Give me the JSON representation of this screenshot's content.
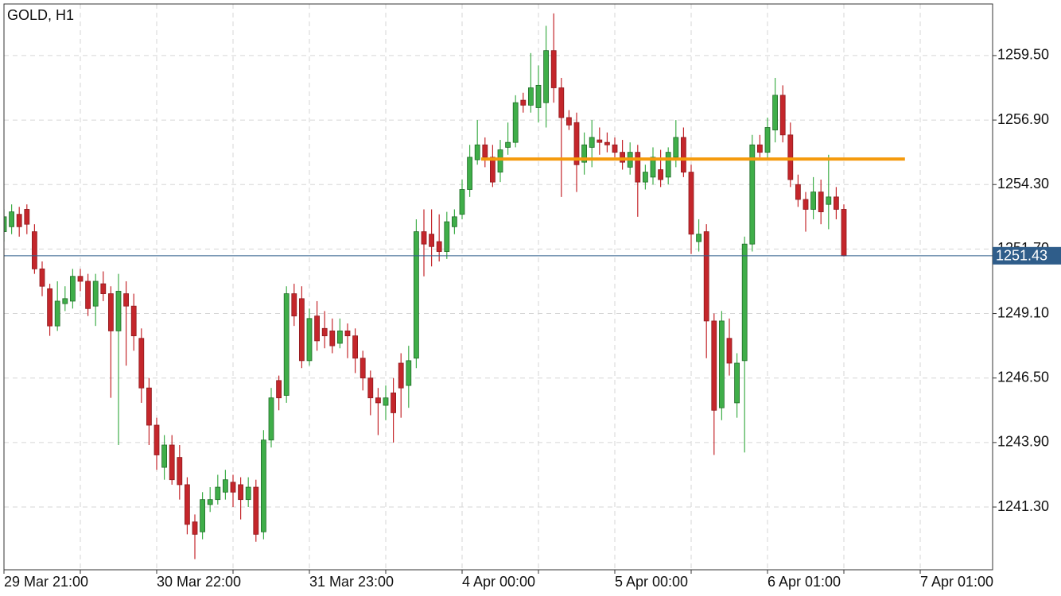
{
  "chart_data": {
    "type": "candlestick",
    "title": "GOLD, H1",
    "open": [
      1252.4,
      1252.6,
      1253.1,
      1253.3,
      1252.4,
      1250.9,
      1250.1,
      1248.6,
      1249.5,
      1249.6,
      1250.6,
      1250.4,
      1249.4,
      1250.3,
      1249.9,
      1248.4,
      1249.9,
      1249.4,
      1248.1,
      1246.1,
      1244.6,
      1242.9,
      1243.8,
      1243.3,
      1242.2,
      1240.7,
      1240.3,
      1241.4,
      1241.6,
      1241.9,
      1242.3,
      1242.2,
      1241.6,
      1242.1,
      1240.3,
      1244.0,
      1246.4,
      1245.8,
      1249.9,
      1249.7,
      1247.2,
      1249.0,
      1248.5,
      1248.4,
      1247.9,
      1248.4,
      1248.2,
      1247.3,
      1246.5,
      1245.7,
      1245.4,
      1245.9,
      1247.1,
      1246.2,
      1247.3,
      1252.4,
      1252.3,
      1252.0,
      1251.6,
      1252.6,
      1253.1,
      1254.1,
      1255.3,
      1255.9,
      1255.4,
      1254.8,
      1255.8,
      1256.0,
      1257.7,
      1257.5,
      1257.4,
      1257.6,
      1259.7,
      1258.2,
      1257.0,
      1256.8,
      1255.2,
      1255.8,
      1256.1,
      1256.0,
      1255.9,
      1255.6,
      1255.0,
      1255.6,
      1254.4,
      1254.6,
      1254.9,
      1254.6,
      1255.4,
      1256.2,
      1254.8,
      1252.0,
      1252.4,
      1248.8,
      1245.3,
      1248.1,
      1245.5,
      1247.2,
      1251.9,
      1255.9,
      1255.6,
      1256.5,
      1257.9,
      1256.3,
      1254.3,
      1253.7,
      1253.3,
      1254.0,
      1253.5,
      1253.8,
      1253.3
    ],
    "high": [
      1253.3,
      1253.5,
      1253.4,
      1253.5,
      1252.7,
      1251.2,
      1250.3,
      1250.4,
      1250.2,
      1250.9,
      1250.9,
      1250.7,
      1250.7,
      1250.8,
      1250.2,
      1250.7,
      1250.4,
      1249.9,
      1248.5,
      1246.5,
      1244.9,
      1244.2,
      1244.2,
      1243.8,
      1242.5,
      1241.0,
      1241.9,
      1242.1,
      1242.6,
      1242.8,
      1242.6,
      1242.5,
      1242.5,
      1242.4,
      1244.4,
      1246.1,
      1246.6,
      1250.2,
      1250.3,
      1250.2,
      1249.3,
      1249.6,
      1249.2,
      1248.9,
      1248.9,
      1248.7,
      1248.5,
      1247.6,
      1246.8,
      1246.1,
      1246.2,
      1246.5,
      1247.5,
      1247.8,
      1252.9,
      1253.3,
      1253.3,
      1253.1,
      1253.2,
      1253.3,
      1254.5,
      1255.9,
      1256.9,
      1256.2,
      1255.9,
      1256.1,
      1256.8,
      1257.9,
      1258.0,
      1259.6,
      1259.1,
      1260.7,
      1261.2,
      1258.6,
      1257.3,
      1257.2,
      1256.4,
      1256.9,
      1256.6,
      1256.4,
      1256.2,
      1256.1,
      1256.0,
      1255.9,
      1255.1,
      1255.8,
      1255.7,
      1255.8,
      1256.9,
      1256.6,
      1255.1,
      1252.9,
      1252.7,
      1249.1,
      1249.2,
      1248.9,
      1247.5,
      1252.2,
      1256.3,
      1256.3,
      1257.0,
      1258.6,
      1258.3,
      1256.8,
      1254.7,
      1254.0,
      1254.6,
      1254.5,
      1255.5,
      1254.2,
      1253.5
    ],
    "low": [
      1252.0,
      1252.3,
      1252.2,
      1252.3,
      1250.7,
      1249.8,
      1248.2,
      1248.4,
      1249.2,
      1249.3,
      1250.0,
      1249.0,
      1248.6,
      1249.6,
      1245.7,
      1243.8,
      1247.0,
      1247.6,
      1245.5,
      1243.8,
      1242.8,
      1242.4,
      1242.2,
      1241.6,
      1240.2,
      1239.2,
      1240.0,
      1241.1,
      1241.4,
      1241.6,
      1241.3,
      1240.8,
      1241.3,
      1239.9,
      1240.0,
      1243.7,
      1245.2,
      1245.5,
      1248.6,
      1246.9,
      1247.0,
      1247.6,
      1247.7,
      1247.5,
      1247.7,
      1247.3,
      1246.7,
      1246.0,
      1245.0,
      1244.2,
      1244.8,
      1243.9,
      1244.9,
      1245.3,
      1246.9,
      1250.6,
      1251.0,
      1251.2,
      1251.3,
      1252.3,
      1252.9,
      1253.8,
      1255.1,
      1255.0,
      1254.2,
      1254.4,
      1255.5,
      1255.8,
      1257.2,
      1257.2,
      1256.8,
      1256.6,
      1257.6,
      1253.8,
      1256.5,
      1254.0,
      1254.7,
      1255.0,
      1255.5,
      1255.6,
      1255.4,
      1254.9,
      1254.7,
      1253.0,
      1254.1,
      1254.3,
      1254.2,
      1254.3,
      1255.0,
      1254.6,
      1251.5,
      1251.6,
      1247.3,
      1243.4,
      1244.8,
      1246.6,
      1244.9,
      1243.5,
      1251.6,
      1255.4,
      1255.3,
      1256.0,
      1256.0,
      1254.2,
      1253.4,
      1252.4,
      1252.9,
      1252.7,
      1252.5,
      1252.9,
      1251.4
    ],
    "close": [
      1253.0,
      1253.2,
      1252.6,
      1252.7,
      1250.9,
      1250.2,
      1248.6,
      1249.6,
      1249.7,
      1250.6,
      1250.4,
      1249.3,
      1250.4,
      1249.9,
      1248.4,
      1250.0,
      1249.4,
      1248.2,
      1246.1,
      1244.6,
      1243.4,
      1243.8,
      1242.4,
      1242.2,
      1240.6,
      1240.2,
      1241.6,
      1241.6,
      1242.1,
      1242.4,
      1241.9,
      1241.6,
      1242.1,
      1240.2,
      1244.0,
      1245.7,
      1245.7,
      1249.9,
      1249.0,
      1247.2,
      1248.9,
      1248.0,
      1248.2,
      1247.8,
      1248.4,
      1248.2,
      1247.3,
      1246.5,
      1245.7,
      1245.5,
      1245.7,
      1245.1,
      1246.1,
      1247.2,
      1252.4,
      1251.9,
      1251.8,
      1251.6,
      1252.8,
      1253.0,
      1254.1,
      1255.4,
      1255.9,
      1255.4,
      1254.4,
      1255.7,
      1256.0,
      1257.6,
      1257.5,
      1258.2,
      1258.3,
      1259.7,
      1258.2,
      1257.0,
      1256.7,
      1255.1,
      1255.9,
      1256.2,
      1256.0,
      1255.9,
      1255.6,
      1255.2,
      1255.6,
      1254.4,
      1254.8,
      1255.4,
      1254.5,
      1255.6,
      1256.2,
      1254.8,
      1252.3,
      1252.3,
      1248.8,
      1245.2,
      1248.8,
      1247.1,
      1247.1,
      1251.9,
      1255.9,
      1255.6,
      1256.6,
      1257.9,
      1256.3,
      1254.5,
      1253.7,
      1253.3,
      1254.0,
      1253.2,
      1253.8,
      1253.3,
      1251.43
    ],
    "up_color": "#3fae49",
    "down_color": "#c4262b",
    "xlim": [
      0,
      129.48
    ],
    "xticks": [
      {
        "value": 0,
        "label": "29 Mar 21:00"
      },
      {
        "value": 20,
        "label": "30 Mar 22:00"
      },
      {
        "value": 40,
        "label": "31 Mar 23:00"
      },
      {
        "value": 60,
        "label": "4 Apr 00:00"
      },
      {
        "value": 80,
        "label": "5 Apr 00:00"
      },
      {
        "value": 100,
        "label": "6 Apr 01:00"
      },
      {
        "value": 120,
        "label": "7 Apr 01:00"
      }
    ],
    "xminor": [
      10,
      30,
      50,
      70,
      90,
      110
    ],
    "ylim": [
      1238.77,
      1261.58
    ],
    "yticks": [
      {
        "value": 1241.3,
        "label": "1241.30"
      },
      {
        "value": 1243.9,
        "label": "1243.90"
      },
      {
        "value": 1246.5,
        "label": "1246.50"
      },
      {
        "value": 1249.1,
        "label": "1249.10"
      },
      {
        "value": 1251.7,
        "label": "1251.70"
      },
      {
        "value": 1254.3,
        "label": "1254.30"
      },
      {
        "value": 1256.9,
        "label": "1256.90"
      },
      {
        "value": 1259.5,
        "label": "1259.50"
      }
    ],
    "grid": true,
    "level_line": {
      "value": 1255.33,
      "from": 62.5,
      "to": 118,
      "color": "#f59a0c"
    },
    "current_price": {
      "value": 1251.43,
      "label": "1251.43",
      "color": "#2f5d8a"
    }
  }
}
